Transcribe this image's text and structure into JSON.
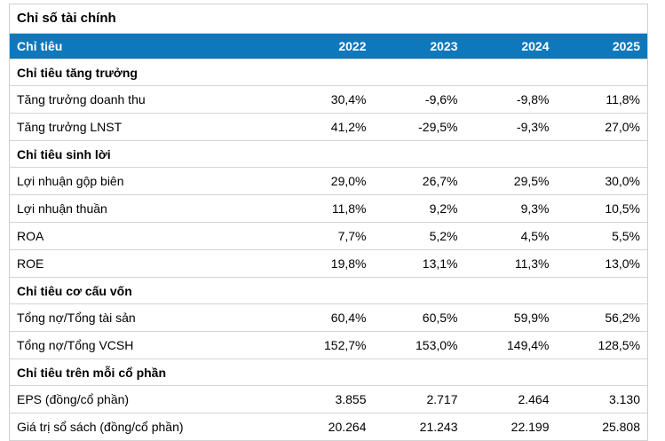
{
  "colors": {
    "header_bg": "#0e78bc",
    "header_text": "#ffffff",
    "border": "#d4d4d4",
    "text": "#000000",
    "background": "#ffffff"
  },
  "chart_data": {
    "type": "table",
    "title": "Chỉ số tài chính",
    "columns": [
      "Chỉ tiêu",
      "2022",
      "2023",
      "2024",
      "2025"
    ],
    "number_format": "vi-VN (comma decimal, dot thousands)",
    "sections": [
      {
        "title": "Chỉ tiêu tăng trưởng",
        "rows": [
          {
            "label": "Tăng trưởng doanh thu",
            "values": [
              "30,4%",
              "-9,6%",
              "-9,8%",
              "11,8%"
            ]
          },
          {
            "label": "Tăng trưởng LNST",
            "values": [
              "41,2%",
              "-29,5%",
              "-9,3%",
              "27,0%"
            ]
          }
        ]
      },
      {
        "title": "Chỉ tiêu sinh lời",
        "rows": [
          {
            "label": "Lợi nhuận gộp biên",
            "values": [
              "29,0%",
              "26,7%",
              "29,5%",
              "30,0%"
            ]
          },
          {
            "label": "Lợi nhuận thuần",
            "values": [
              "11,8%",
              "9,2%",
              "9,3%",
              "10,5%"
            ]
          },
          {
            "label": "ROA",
            "values": [
              "7,7%",
              "5,2%",
              "4,5%",
              "5,5%"
            ]
          },
          {
            "label": "ROE",
            "values": [
              "19,8%",
              "13,1%",
              "11,3%",
              "13,0%"
            ]
          }
        ]
      },
      {
        "title": "Chỉ tiêu cơ cấu vốn",
        "rows": [
          {
            "label": "Tổng nợ/Tổng tài sản",
            "values": [
              "60,4%",
              "60,5%",
              "59,9%",
              "56,2%"
            ]
          },
          {
            "label": "Tổng nợ/Tổng VCSH",
            "values": [
              "152,7%",
              "153,0%",
              "149,4%",
              "128,5%"
            ]
          }
        ]
      },
      {
        "title": "Chỉ tiêu trên mỗi cổ phần",
        "rows": [
          {
            "label": "EPS (đồng/cổ phần)",
            "values": [
              "3.855",
              "2.717",
              "2.464",
              "3.130"
            ]
          },
          {
            "label": "Giá trị sổ sách (đồng/cổ phần)",
            "values": [
              "20.264",
              "21.243",
              "22.199",
              "25.808"
            ]
          }
        ]
      }
    ]
  }
}
